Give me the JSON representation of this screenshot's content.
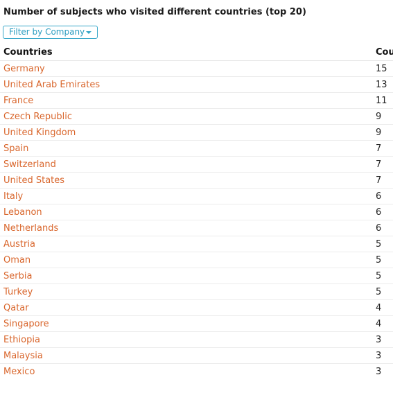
{
  "title": "Number of subjects who visited different countries (top 20)",
  "filter": {
    "label": "Filter by Company"
  },
  "table": {
    "headers": {
      "country": "Countries",
      "count": "Cou"
    },
    "rows": [
      {
        "country": "Germany",
        "count": "15"
      },
      {
        "country": "United Arab Emirates",
        "count": "13"
      },
      {
        "country": "France",
        "count": "11"
      },
      {
        "country": "Czech Republic",
        "count": "9"
      },
      {
        "country": "United Kingdom",
        "count": "9"
      },
      {
        "country": "Spain",
        "count": "7"
      },
      {
        "country": "Switzerland",
        "count": "7"
      },
      {
        "country": "United States",
        "count": "7"
      },
      {
        "country": "Italy",
        "count": "6"
      },
      {
        "country": "Lebanon",
        "count": "6"
      },
      {
        "country": "Netherlands",
        "count": "6"
      },
      {
        "country": "Austria",
        "count": "5"
      },
      {
        "country": "Oman",
        "count": "5"
      },
      {
        "country": "Serbia",
        "count": "5"
      },
      {
        "country": "Turkey",
        "count": "5"
      },
      {
        "country": "Qatar",
        "count": "4"
      },
      {
        "country": "Singapore",
        "count": "4"
      },
      {
        "country": "Ethiopia",
        "count": "3"
      },
      {
        "country": "Malaysia",
        "count": "3"
      },
      {
        "country": "Mexico",
        "count": "3"
      }
    ]
  },
  "colors": {
    "link": "#d9662c",
    "accent": "#35a6c8"
  },
  "icons": {
    "filter_caret": "chevron-down-icon"
  }
}
